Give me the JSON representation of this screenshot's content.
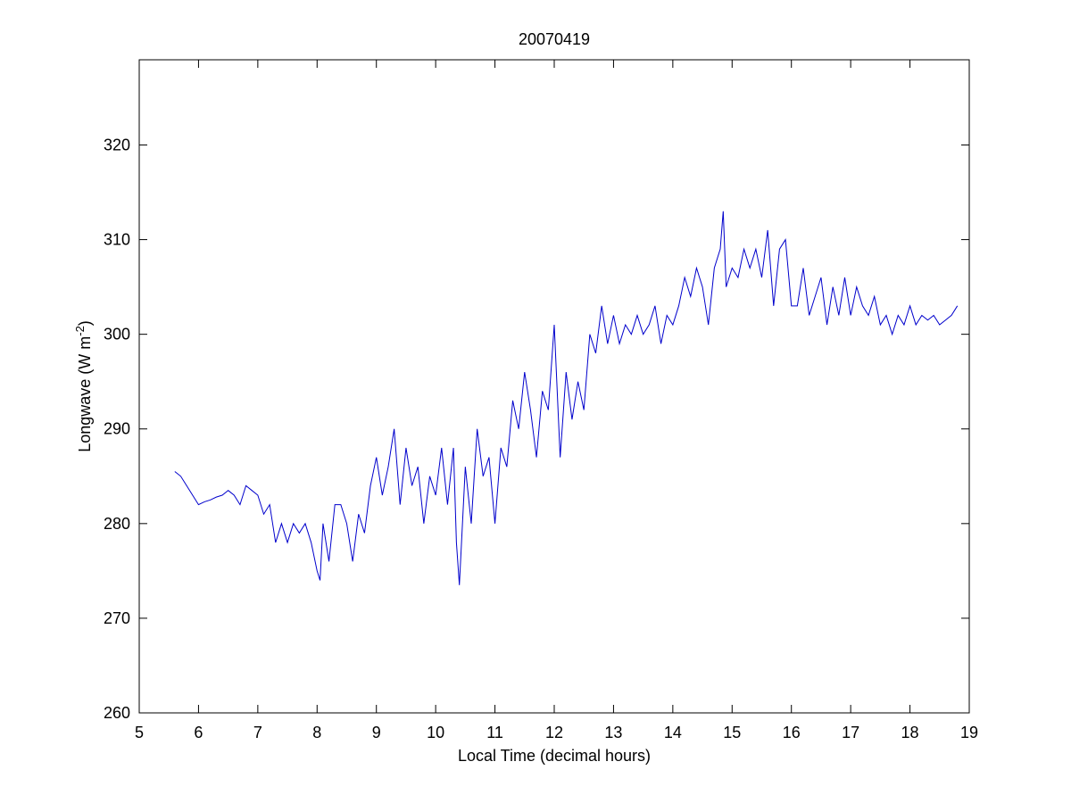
{
  "chart_data": {
    "type": "line",
    "title": "20070419",
    "xlabel": "Local Time (decimal hours)",
    "ylabel": {
      "text": "Longwave (W m",
      "superscript": "-2",
      "suffix": ")"
    },
    "xlim": [
      5,
      19
    ],
    "ylim": [
      260,
      329
    ],
    "xticks": [
      5,
      6,
      7,
      8,
      9,
      10,
      11,
      12,
      13,
      14,
      15,
      16,
      17,
      18,
      19
    ],
    "yticks": [
      260,
      270,
      280,
      290,
      300,
      310,
      320
    ],
    "series": [
      {
        "color": "#0000cc",
        "x": [
          5.6,
          5.7,
          5.8,
          5.9,
          6.0,
          6.1,
          6.2,
          6.3,
          6.4,
          6.5,
          6.6,
          6.7,
          6.8,
          6.9,
          7.0,
          7.1,
          7.2,
          7.3,
          7.4,
          7.5,
          7.6,
          7.7,
          7.8,
          7.9,
          8.0,
          8.05,
          8.1,
          8.2,
          8.3,
          8.4,
          8.5,
          8.6,
          8.7,
          8.8,
          8.9,
          9.0,
          9.1,
          9.2,
          9.3,
          9.4,
          9.5,
          9.6,
          9.7,
          9.8,
          9.9,
          10.0,
          10.1,
          10.2,
          10.3,
          10.35,
          10.4,
          10.5,
          10.6,
          10.7,
          10.8,
          10.9,
          11.0,
          11.1,
          11.2,
          11.3,
          11.4,
          11.5,
          11.6,
          11.7,
          11.8,
          11.9,
          12.0,
          12.1,
          12.2,
          12.3,
          12.4,
          12.5,
          12.6,
          12.7,
          12.8,
          12.9,
          13.0,
          13.1,
          13.2,
          13.3,
          13.4,
          13.5,
          13.6,
          13.7,
          13.8,
          13.9,
          14.0,
          14.1,
          14.2,
          14.3,
          14.4,
          14.5,
          14.6,
          14.7,
          14.8,
          14.85,
          14.9,
          15.0,
          15.1,
          15.2,
          15.3,
          15.4,
          15.5,
          15.6,
          15.7,
          15.8,
          15.9,
          16.0,
          16.1,
          16.2,
          16.3,
          16.4,
          16.5,
          16.6,
          16.7,
          16.8,
          16.9,
          17.0,
          17.1,
          17.2,
          17.3,
          17.4,
          17.5,
          17.6,
          17.7,
          17.8,
          17.9,
          18.0,
          18.1,
          18.2,
          18.3,
          18.4,
          18.5,
          18.6,
          18.7,
          18.8
        ],
        "values": [
          285.5,
          285,
          284,
          283,
          282,
          282.3,
          282.5,
          282.8,
          283,
          283.5,
          283,
          282,
          284,
          283.5,
          283,
          281,
          282,
          278,
          280,
          278,
          280,
          279,
          280,
          278,
          275,
          274,
          280,
          276,
          282,
          282,
          280,
          276,
          281,
          279,
          284,
          287,
          283,
          286,
          290,
          282,
          288,
          284,
          286,
          280,
          285,
          283,
          288,
          282,
          288,
          278,
          273.5,
          286,
          280,
          290,
          285,
          287,
          280,
          288,
          286,
          293,
          290,
          296,
          292,
          287,
          294,
          292,
          301,
          287,
          296,
          291,
          295,
          292,
          300,
          298,
          303,
          299,
          302,
          299,
          301,
          300,
          302,
          300,
          301,
          303,
          299,
          302,
          301,
          303,
          306,
          304,
          307,
          305,
          301,
          307,
          309,
          313,
          305,
          307,
          306,
          309,
          307,
          309,
          306,
          311,
          303,
          309,
          310,
          303,
          303,
          307,
          302,
          304,
          306,
          301,
          305,
          302,
          306,
          302,
          305,
          303,
          302,
          304,
          301,
          302,
          300,
          302,
          301,
          303,
          301,
          302,
          301.5,
          302,
          301,
          301.5,
          302,
          303
        ]
      }
    ]
  }
}
